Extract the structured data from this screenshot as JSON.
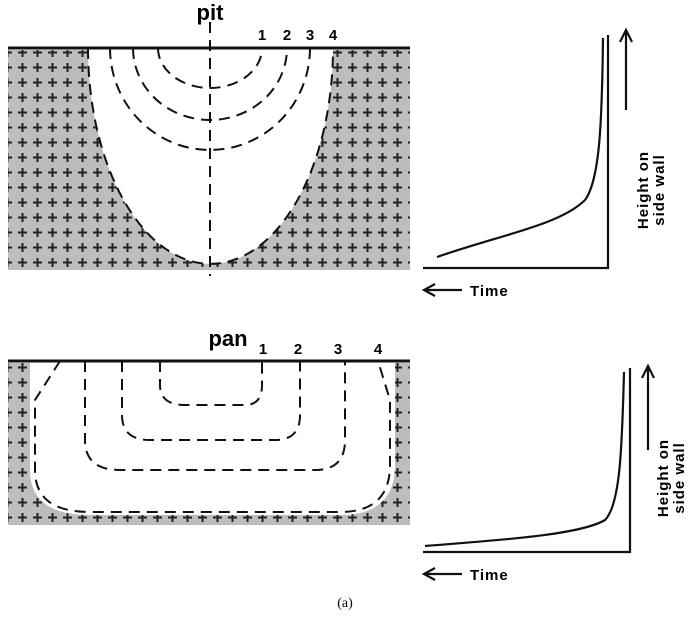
{
  "panels": [
    {
      "label": "pit",
      "contours": [
        "1",
        "2",
        "3",
        "4"
      ],
      "y_axis": [
        "Height on",
        "side wall"
      ],
      "x_axis": "Time"
    },
    {
      "label": "pan",
      "contours": [
        "1",
        "2",
        "3",
        "4"
      ],
      "y_axis": [
        "Height on",
        "side wall"
      ],
      "x_axis": "Time"
    }
  ],
  "caption": "(a)"
}
